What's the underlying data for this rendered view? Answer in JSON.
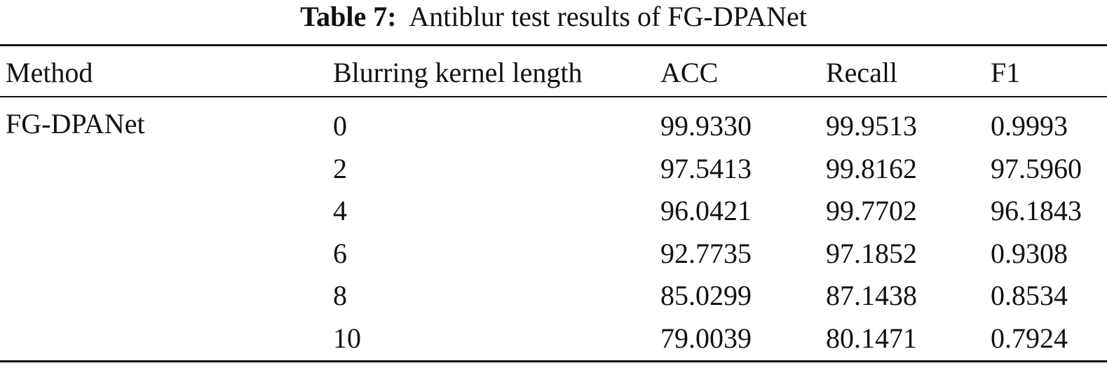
{
  "caption": {
    "label": "Table 7:",
    "text": "Antiblur test results of FG-DPANet"
  },
  "table": {
    "columns": [
      "Method",
      "Blurring kernel length",
      "ACC",
      "Recall",
      "F1"
    ],
    "method": "FG-DPANet",
    "rows": [
      [
        "0",
        "99.9330",
        "99.9513",
        "0.9993"
      ],
      [
        "2",
        "97.5413",
        "99.8162",
        "97.5960"
      ],
      [
        "4",
        "96.0421",
        "99.7702",
        "96.1843"
      ],
      [
        "6",
        "92.7735",
        "97.1852",
        "0.9308"
      ],
      [
        "8",
        "85.0299",
        "87.1438",
        "0.8534"
      ],
      [
        "10",
        "79.0039",
        "80.1471",
        "0.7924"
      ]
    ]
  }
}
